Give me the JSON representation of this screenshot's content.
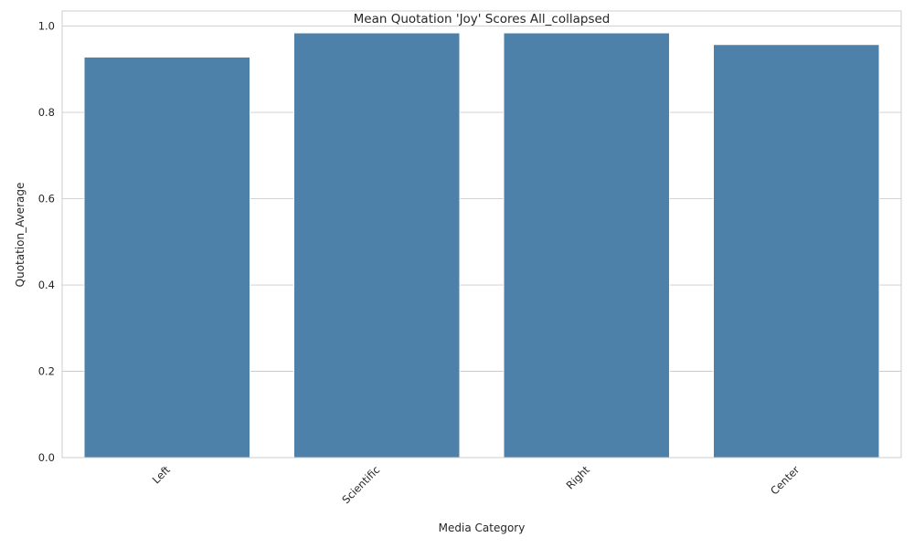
{
  "chart_data": {
    "type": "bar",
    "title": "Mean Quotation 'Joy' Scores All_collapsed",
    "xlabel": "Media Category",
    "ylabel": "Quotation_Average",
    "categories": [
      "Left",
      "Scientific",
      "Right",
      "Center"
    ],
    "values": [
      0.928,
      0.984,
      0.984,
      0.957
    ],
    "ylim": [
      0,
      1.035
    ],
    "yticks": [
      "0.0",
      "0.2",
      "0.4",
      "0.6",
      "0.8",
      "1.0"
    ],
    "bar_color": "#4e81aa",
    "grid": true,
    "legend": "none"
  }
}
